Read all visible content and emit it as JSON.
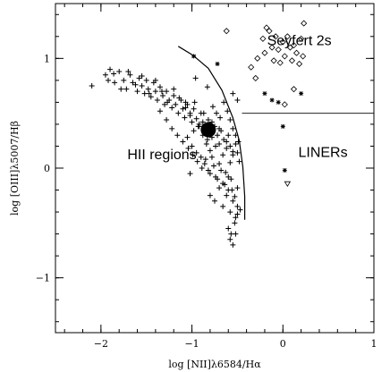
{
  "chart_data": {
    "type": "scatter",
    "xlabel": "log  [NII]λ6584/Hα",
    "ylabel": "log [OIII]λ5007/Hβ",
    "xlim": [
      -2.5,
      1.0
    ],
    "ylim": [
      -1.5,
      1.5
    ],
    "x_ticks": [
      -2,
      -1,
      0,
      1
    ],
    "y_ticks": [
      -1,
      0,
      1
    ],
    "x_tick_labels": [
      "−2",
      "−1",
      "0",
      "1"
    ],
    "y_tick_labels": [
      "−1",
      "0",
      "1"
    ],
    "grid": false,
    "region_labels": [
      {
        "text": "Seyfert 2s",
        "x": 0.18,
        "y": 1.12
      },
      {
        "text": "HII regions",
        "x": -1.33,
        "y": 0.08
      },
      {
        "text": "LINERs",
        "x": 0.44,
        "y": 0.1
      }
    ],
    "lines": [
      {
        "kind": "demarcation-curve",
        "points": [
          [
            -1.15,
            1.11
          ],
          [
            -0.99,
            1.03
          ],
          [
            -0.82,
            0.91
          ],
          [
            -0.67,
            0.71
          ],
          [
            -0.55,
            0.46
          ],
          [
            -0.48,
            0.25
          ],
          [
            -0.44,
            0.01
          ],
          [
            -0.42,
            -0.26
          ],
          [
            -0.42,
            -0.47
          ]
        ]
      },
      {
        "kind": "seyfert-liner-divider",
        "points": [
          [
            -0.45,
            0.5
          ],
          [
            1.0,
            0.5
          ]
        ]
      }
    ],
    "series": [
      {
        "marker": "plus",
        "x": [
          -2.1,
          -1.95,
          -1.9,
          -1.85,
          -1.8,
          -1.75,
          -1.72,
          -1.68,
          -1.65,
          -1.6,
          -1.58,
          -1.55,
          -1.52,
          -1.5,
          -1.48,
          -1.45,
          -1.42,
          -1.4,
          -1.38,
          -1.35,
          -1.32,
          -1.3,
          -1.28,
          -1.25,
          -1.22,
          -1.2,
          -1.18,
          -1.15,
          -1.12,
          -1.1,
          -1.08,
          -1.05,
          -1.02,
          -1.0,
          -0.98,
          -0.95,
          -0.92,
          -0.9,
          -0.88,
          -0.85,
          -0.82,
          -0.8,
          -0.78,
          -0.75,
          -0.72,
          -0.7,
          -0.68,
          -0.65,
          -0.62,
          -0.6,
          -0.58,
          -0.55,
          -0.52,
          -0.5,
          -0.48,
          -1.92,
          -1.86,
          -1.78,
          -1.7,
          -1.62,
          -1.55,
          -1.47,
          -1.4,
          -1.33,
          -1.27,
          -1.2,
          -1.14,
          -1.07,
          -1.02,
          -0.97,
          -0.93,
          -0.87,
          -0.83,
          -0.78,
          -0.74,
          -0.7,
          -0.66,
          -0.62,
          -0.58,
          -0.55,
          -1.35,
          -1.28,
          -1.22,
          -1.16,
          -1.1,
          -1.04,
          -0.99,
          -0.94,
          -0.89,
          -0.85,
          -0.8,
          -0.76,
          -0.72,
          -0.68,
          -0.64,
          -0.6,
          -0.56,
          -1.05,
          -1.0,
          -0.95,
          -0.9,
          -0.86,
          -0.82,
          -0.78,
          -0.74,
          -0.7,
          -0.66,
          -0.63,
          -0.6,
          -0.57,
          -0.53,
          -0.5,
          -0.98,
          -0.92,
          -0.88,
          -0.84,
          -0.8,
          -0.77,
          -0.73,
          -0.69,
          -0.65,
          -0.61,
          -0.58,
          -0.55,
          -0.52,
          -0.49,
          -0.8,
          -0.75,
          -0.7,
          -0.66,
          -0.62,
          -0.58,
          -0.55,
          -0.52,
          -0.5,
          -0.6,
          -0.57,
          -0.53,
          -0.5,
          -0.47,
          -0.58,
          -0.55,
          -0.52,
          -1.02,
          -0.5,
          -0.55,
          -0.96,
          -0.83,
          -1.07
        ],
        "y": [
          0.75,
          0.85,
          0.9,
          0.78,
          0.88,
          0.8,
          0.72,
          0.85,
          0.78,
          0.7,
          0.82,
          0.75,
          0.68,
          0.8,
          0.72,
          0.65,
          0.78,
          0.7,
          0.62,
          0.74,
          0.66,
          0.58,
          0.7,
          0.62,
          0.55,
          0.66,
          0.58,
          0.5,
          0.62,
          0.54,
          0.46,
          0.58,
          0.5,
          0.42,
          0.54,
          0.45,
          0.38,
          0.5,
          0.42,
          0.32,
          0.44,
          0.36,
          0.28,
          0.38,
          0.3,
          0.22,
          0.34,
          0.26,
          0.18,
          0.3,
          0.2,
          0.12,
          0.22,
          0.14,
          0.06,
          0.8,
          0.86,
          0.72,
          0.88,
          0.76,
          0.84,
          0.68,
          0.8,
          0.7,
          0.6,
          0.72,
          0.64,
          0.55,
          0.48,
          0.6,
          0.38,
          0.5,
          0.26,
          0.42,
          0.2,
          0.36,
          0.12,
          0.24,
          0.05,
          0.15,
          0.52,
          0.44,
          0.36,
          0.3,
          0.24,
          0.18,
          0.12,
          0.06,
          0.0,
          0.08,
          -0.05,
          0.02,
          -0.1,
          -0.02,
          -0.15,
          -0.08,
          -0.2,
          0.28,
          0.2,
          0.14,
          0.1,
          0.04,
          -0.02,
          0.1,
          -0.08,
          0.04,
          -0.14,
          -0.04,
          -0.2,
          -0.1,
          -0.26,
          -0.18,
          0.34,
          0.4,
          0.3,
          0.22,
          0.16,
          0.56,
          0.5,
          0.46,
          0.6,
          0.52,
          0.44,
          0.36,
          0.3,
          0.24,
          -0.25,
          -0.3,
          -0.18,
          -0.35,
          -0.25,
          -0.4,
          -0.3,
          -0.45,
          -0.35,
          -0.55,
          -0.6,
          -0.5,
          -0.42,
          -0.38,
          -0.65,
          -0.7,
          -0.6,
          -0.05,
          0.62,
          0.68,
          0.82,
          0.74,
          0.6
        ]
      },
      {
        "marker": "diamond",
        "x": [
          -0.35,
          -0.28,
          -0.22,
          -0.2,
          -0.15,
          -0.12,
          -0.1,
          -0.08,
          -0.05,
          -0.03,
          0.0,
          0.02,
          0.05,
          0.08,
          0.1,
          0.12,
          0.15,
          0.18,
          0.2,
          0.23,
          -0.62,
          -0.3,
          -0.18,
          0.02,
          0.12,
          0.22
        ],
        "y": [
          0.92,
          1.0,
          1.18,
          1.05,
          1.25,
          1.1,
          0.98,
          1.2,
          1.08,
          0.96,
          1.15,
          1.02,
          1.2,
          1.1,
          0.98,
          1.12,
          1.05,
          0.95,
          1.18,
          1.32,
          1.25,
          0.82,
          1.28,
          0.58,
          0.72,
          1.02
        ]
      },
      {
        "marker": "star",
        "x": [
          -0.98,
          -0.72,
          -0.2,
          -0.05,
          0.2,
          -0.12,
          0.0,
          0.02
        ],
        "y": [
          1.02,
          0.95,
          0.68,
          0.6,
          0.68,
          0.62,
          0.38,
          -0.02
        ]
      },
      {
        "marker": "triangle-down",
        "x": [
          0.05
        ],
        "y": [
          -0.14
        ]
      },
      {
        "marker": "big-dot",
        "x": [
          -0.82
        ],
        "y": [
          0.35
        ]
      }
    ]
  }
}
